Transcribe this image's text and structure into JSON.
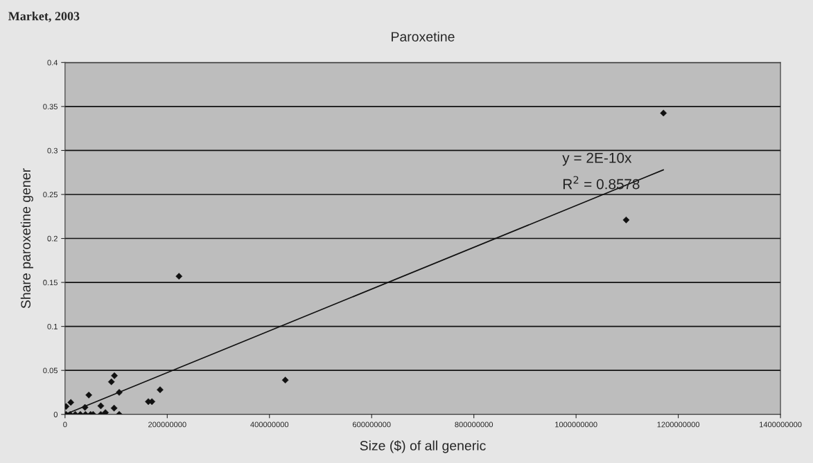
{
  "chart_data": {
    "type": "scatter",
    "title": "Paroxetine",
    "xlabel": "Size ($) of all generic",
    "ylabel": "Share paroxetine gener",
    "annotations": [
      "Market, 2003",
      "y = 2E-10x",
      "R$^{2}$ = 0.8578"
    ],
    "series": [
      {
        "color": "#111111",
        "marker": "diamond",
        "x": [
          2000000,
          11300000,
          46500000,
          39000000,
          90700000,
          96600000,
          106000000,
          70000000,
          96000000,
          79000000,
          70000000,
          106000000,
          163000000,
          170000000,
          186000000,
          223000000,
          431000000,
          1098000000,
          1171000000,
          2000000,
          10000000,
          20000000,
          30000000,
          40000000,
          50000000,
          55000000
        ],
        "values": [
          0.009,
          0.0136,
          0.022,
          0.008,
          0.037,
          0.044,
          0.025,
          0.0097,
          0.0071,
          0.002,
          0,
          0,
          0.0145,
          0.0145,
          0.028,
          0.157,
          0.039,
          0.221,
          0.3425,
          0,
          0,
          0,
          0,
          0,
          0,
          0
        ]
      },
      {
        "type": "line",
        "color": "#111111",
        "marker": "none",
        "line_style": "solid",
        "x": [
          0,
          1171000000
        ],
        "values": [
          0,
          0.278
        ]
      }
    ],
    "xlim": [
      0,
      1400000000
    ],
    "xticks": [
      0,
      200000000,
      400000000,
      600000000,
      800000000,
      1000000000,
      1200000000,
      1400000000
    ],
    "ylim": [
      0,
      0.4
    ],
    "yticks": [
      0,
      0.05,
      0.1,
      0.15,
      0.2,
      0.25,
      0.3,
      0.35,
      0.4
    ],
    "grid": "y",
    "legend": false
  }
}
